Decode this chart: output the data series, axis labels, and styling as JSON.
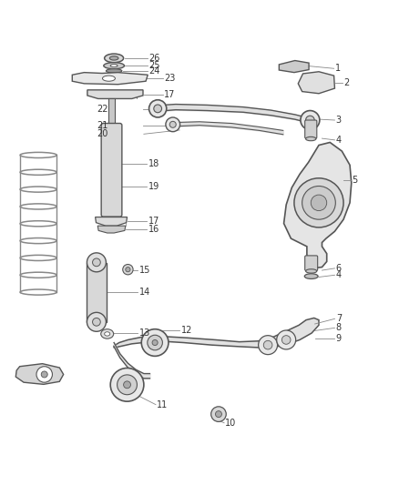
{
  "bg_color": "#ffffff",
  "line_color": "#555555",
  "text_color": "#333333",
  "fig_width": 4.38,
  "fig_height": 5.33,
  "dpi": 100
}
